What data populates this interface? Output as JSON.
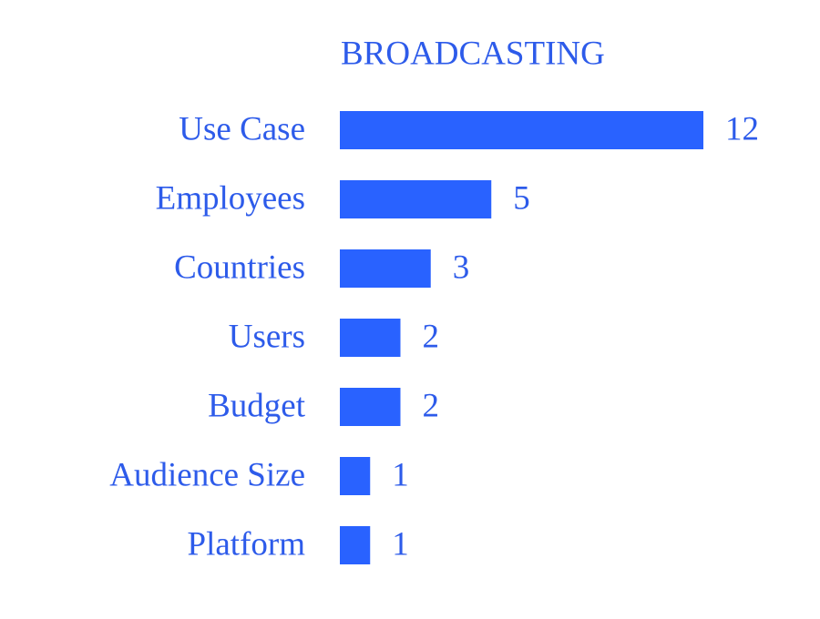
{
  "chart_data": {
    "type": "bar",
    "orientation": "horizontal",
    "title": "BROADCASTING",
    "categories": [
      "Use Case",
      "Employees",
      "Countries",
      "Users",
      "Budget",
      "Audience Size",
      "Platform"
    ],
    "values": [
      12,
      5,
      3,
      2,
      2,
      1,
      1
    ],
    "color": "#2962ff"
  }
}
